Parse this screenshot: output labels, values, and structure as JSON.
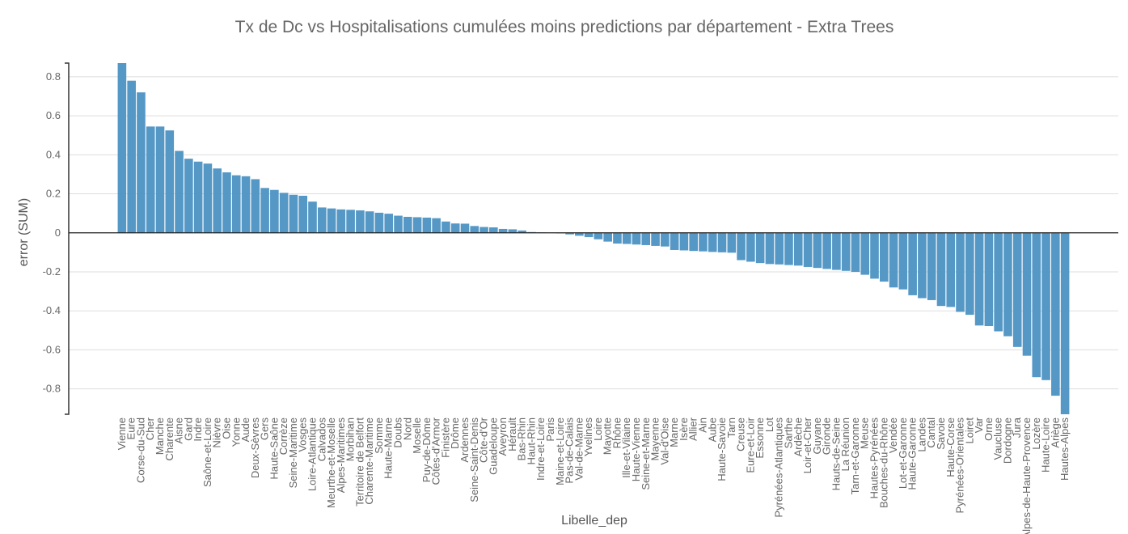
{
  "chart_data": {
    "type": "bar",
    "title": "Tx de Dc vs Hospitalisations cumulées moins predictions par département - Extra Trees",
    "x_label": "Libelle_dep",
    "y_label": "error (SUM)",
    "color": "#4c92c3",
    "grid": true,
    "ylim": [
      -0.93,
      0.87
    ],
    "yticks": [
      -0.8,
      -0.6,
      -0.4,
      -0.2,
      0,
      0.2,
      0.4,
      0.6,
      0.8
    ],
    "categories": [
      "Vienne",
      "Eure",
      "Corse-du-Sud",
      "Cher",
      "Manche",
      "Charente",
      "Aisne",
      "Gard",
      "Indre",
      "Saône-et-Loire",
      "Nièvre",
      "Oise",
      "Yonne",
      "Aude",
      "Deux-Sèvres",
      "Gers",
      "Haute-Saône",
      "Corrèze",
      "Seine-Maritime",
      "Vosges",
      "Loire-Atlantique",
      "Calvados",
      "Meurthe-et-Moselle",
      "Alpes-Maritimes",
      "Morbihan",
      "Territoire de Belfort",
      "Charente-Maritime",
      "Somme",
      "Haute-Marne",
      "Doubs",
      "Nord",
      "Moselle",
      "Puy-de-Dôme",
      "Côtes-d'Armor",
      "Finistère",
      "Drôme",
      "Ardennes",
      "Seine-Saint-Denis",
      "Côte-d'Or",
      "Guadeloupe",
      "Aveyron",
      "Hérault",
      "Bas-Rhin",
      "Haut-Rhin",
      "Indre-et-Loire",
      "Paris",
      "Maine-et-Loire",
      "Pas-de-Calais",
      "Val-de-Marne",
      "Yvelines",
      "Loire",
      "Mayotte",
      "Rhône",
      "Ille-et-Vilaine",
      "Haute-Vienne",
      "Seine-et-Marne",
      "Mayenne",
      "Val-d'Oise",
      "Marne",
      "Isère",
      "Allier",
      "Ain",
      "Aube",
      "Haute-Savoie",
      "Tarn",
      "Creuse",
      "Eure-et-Loir",
      "Essonne",
      "Lot",
      "Pyrénées-Atlantiques",
      "Sarthe",
      "Ardèche",
      "Loir-et-Cher",
      "Guyane",
      "Gironde",
      "Hauts-de-Seine",
      "La Réunion",
      "Tarn-et-Garonne",
      "Meuse",
      "Hautes-Pyrénées",
      "Bouches-du-Rhône",
      "Vendée",
      "Lot-et-Garonne",
      "Haute-Garonne",
      "Landes",
      "Cantal",
      "Savoie",
      "Haute-Corse",
      "Pyrénées-Orientales",
      "Loiret",
      "Var",
      "Orne",
      "Vaucluse",
      "Dordogne",
      "Jura",
      "Alpes-de-Haute-Provence",
      "Lozère",
      "Haute-Loire",
      "Ariège",
      "Hautes-Alpes"
    ],
    "values": [
      0.87,
      0.78,
      0.72,
      0.545,
      0.545,
      0.525,
      0.42,
      0.38,
      0.365,
      0.355,
      0.33,
      0.31,
      0.295,
      0.29,
      0.275,
      0.23,
      0.22,
      0.205,
      0.195,
      0.19,
      0.16,
      0.13,
      0.125,
      0.12,
      0.118,
      0.115,
      0.11,
      0.103,
      0.098,
      0.088,
      0.082,
      0.08,
      0.078,
      0.075,
      0.058,
      0.048,
      0.047,
      0.035,
      0.03,
      0.028,
      0.02,
      0.018,
      0.012,
      0.004,
      0.002,
      0,
      -0.003,
      -0.008,
      -0.015,
      -0.022,
      -0.033,
      -0.045,
      -0.055,
      -0.057,
      -0.06,
      -0.063,
      -0.067,
      -0.07,
      -0.088,
      -0.09,
      -0.093,
      -0.095,
      -0.098,
      -0.1,
      -0.102,
      -0.14,
      -0.148,
      -0.155,
      -0.16,
      -0.162,
      -0.165,
      -0.168,
      -0.175,
      -0.18,
      -0.185,
      -0.19,
      -0.195,
      -0.2,
      -0.215,
      -0.235,
      -0.25,
      -0.28,
      -0.29,
      -0.32,
      -0.335,
      -0.345,
      -0.375,
      -0.38,
      -0.405,
      -0.42,
      -0.475,
      -0.478,
      -0.505,
      -0.53,
      -0.585,
      -0.63,
      -0.74,
      -0.755,
      -0.835,
      -0.93
    ]
  }
}
